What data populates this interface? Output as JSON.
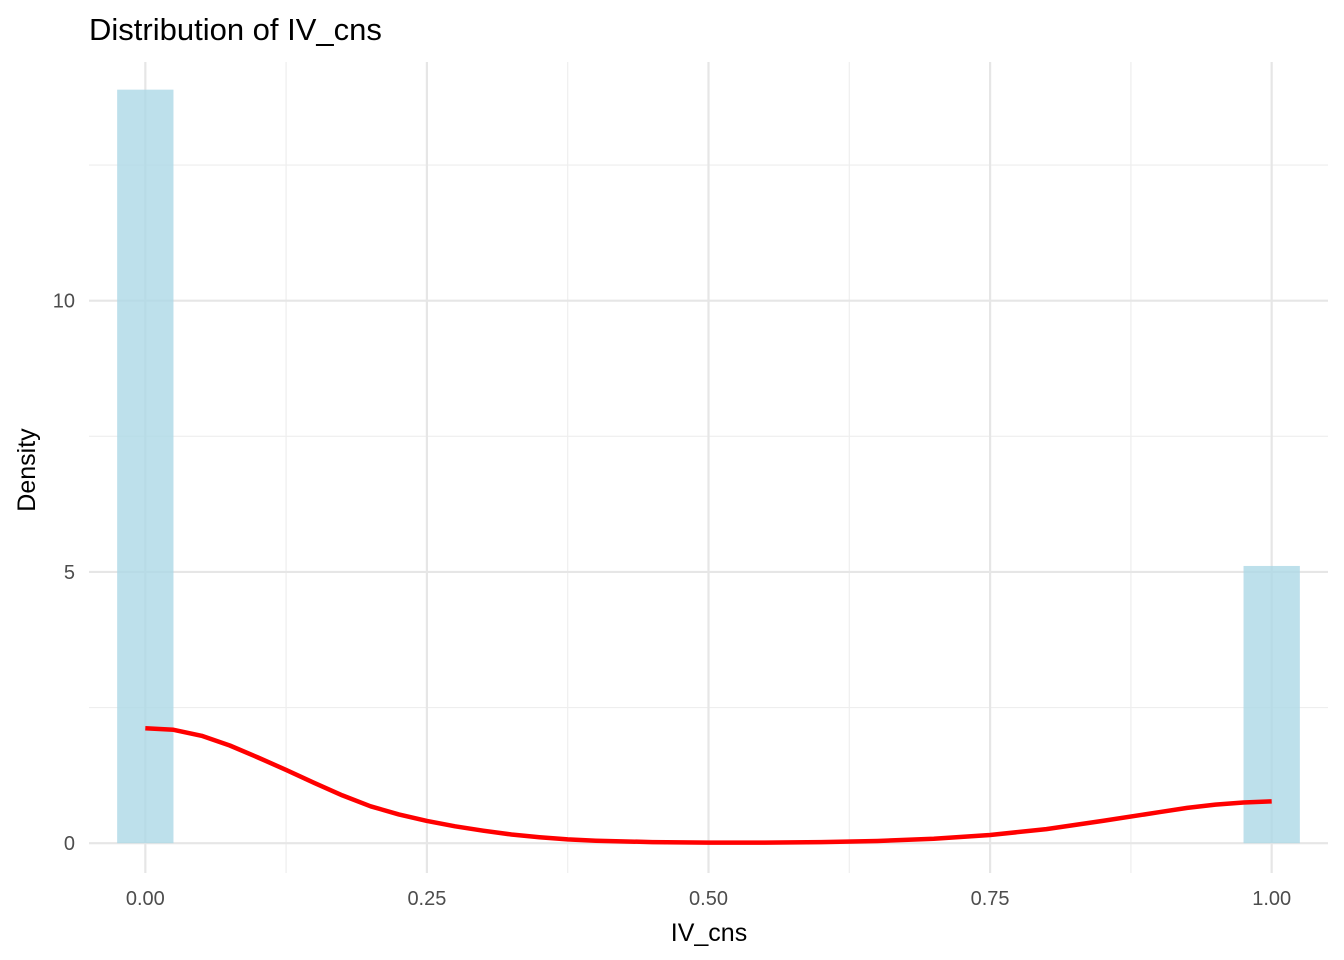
{
  "chart_data": {
    "type": "bar",
    "title": "Distribution of IV_cns",
    "xlabel": "IV_cns",
    "ylabel": "Density",
    "xlim": [
      -0.05,
      1.05
    ],
    "ylim": [
      -0.55,
      14.4
    ],
    "x_ticks": [
      {
        "value": 0.0,
        "label": "0.00"
      },
      {
        "value": 0.25,
        "label": "0.25"
      },
      {
        "value": 0.5,
        "label": "0.50"
      },
      {
        "value": 0.75,
        "label": "0.75"
      },
      {
        "value": 1.0,
        "label": "1.00"
      }
    ],
    "x_minor_ticks": [
      0.125,
      0.375,
      0.625,
      0.875
    ],
    "y_ticks": [
      {
        "value": 0,
        "label": "0"
      },
      {
        "value": 5,
        "label": "5"
      },
      {
        "value": 10,
        "label": "10"
      }
    ],
    "y_minor_ticks": [
      2.5,
      7.5,
      12.5
    ],
    "grid": true,
    "histogram": {
      "color": "#add8e6",
      "bins": [
        {
          "x_start": -0.025,
          "x_end": 0.025,
          "density": 13.89
        },
        {
          "x_start": 0.975,
          "x_end": 1.025,
          "density": 5.11
        }
      ]
    },
    "density_curve": {
      "color": "#ff0000",
      "points": [
        [
          0.0,
          2.12
        ],
        [
          0.025,
          2.09
        ],
        [
          0.05,
          1.98
        ],
        [
          0.075,
          1.8
        ],
        [
          0.1,
          1.58
        ],
        [
          0.125,
          1.35
        ],
        [
          0.15,
          1.11
        ],
        [
          0.175,
          0.88
        ],
        [
          0.2,
          0.68
        ],
        [
          0.225,
          0.53
        ],
        [
          0.25,
          0.41
        ],
        [
          0.275,
          0.31
        ],
        [
          0.3,
          0.23
        ],
        [
          0.325,
          0.16
        ],
        [
          0.35,
          0.11
        ],
        [
          0.375,
          0.07
        ],
        [
          0.4,
          0.045
        ],
        [
          0.45,
          0.02
        ],
        [
          0.5,
          0.01
        ],
        [
          0.55,
          0.01
        ],
        [
          0.6,
          0.02
        ],
        [
          0.65,
          0.04
        ],
        [
          0.7,
          0.08
        ],
        [
          0.75,
          0.15
        ],
        [
          0.8,
          0.26
        ],
        [
          0.85,
          0.41
        ],
        [
          0.9,
          0.57
        ],
        [
          0.925,
          0.65
        ],
        [
          0.95,
          0.71
        ],
        [
          0.975,
          0.75
        ],
        [
          1.0,
          0.77
        ]
      ]
    }
  }
}
